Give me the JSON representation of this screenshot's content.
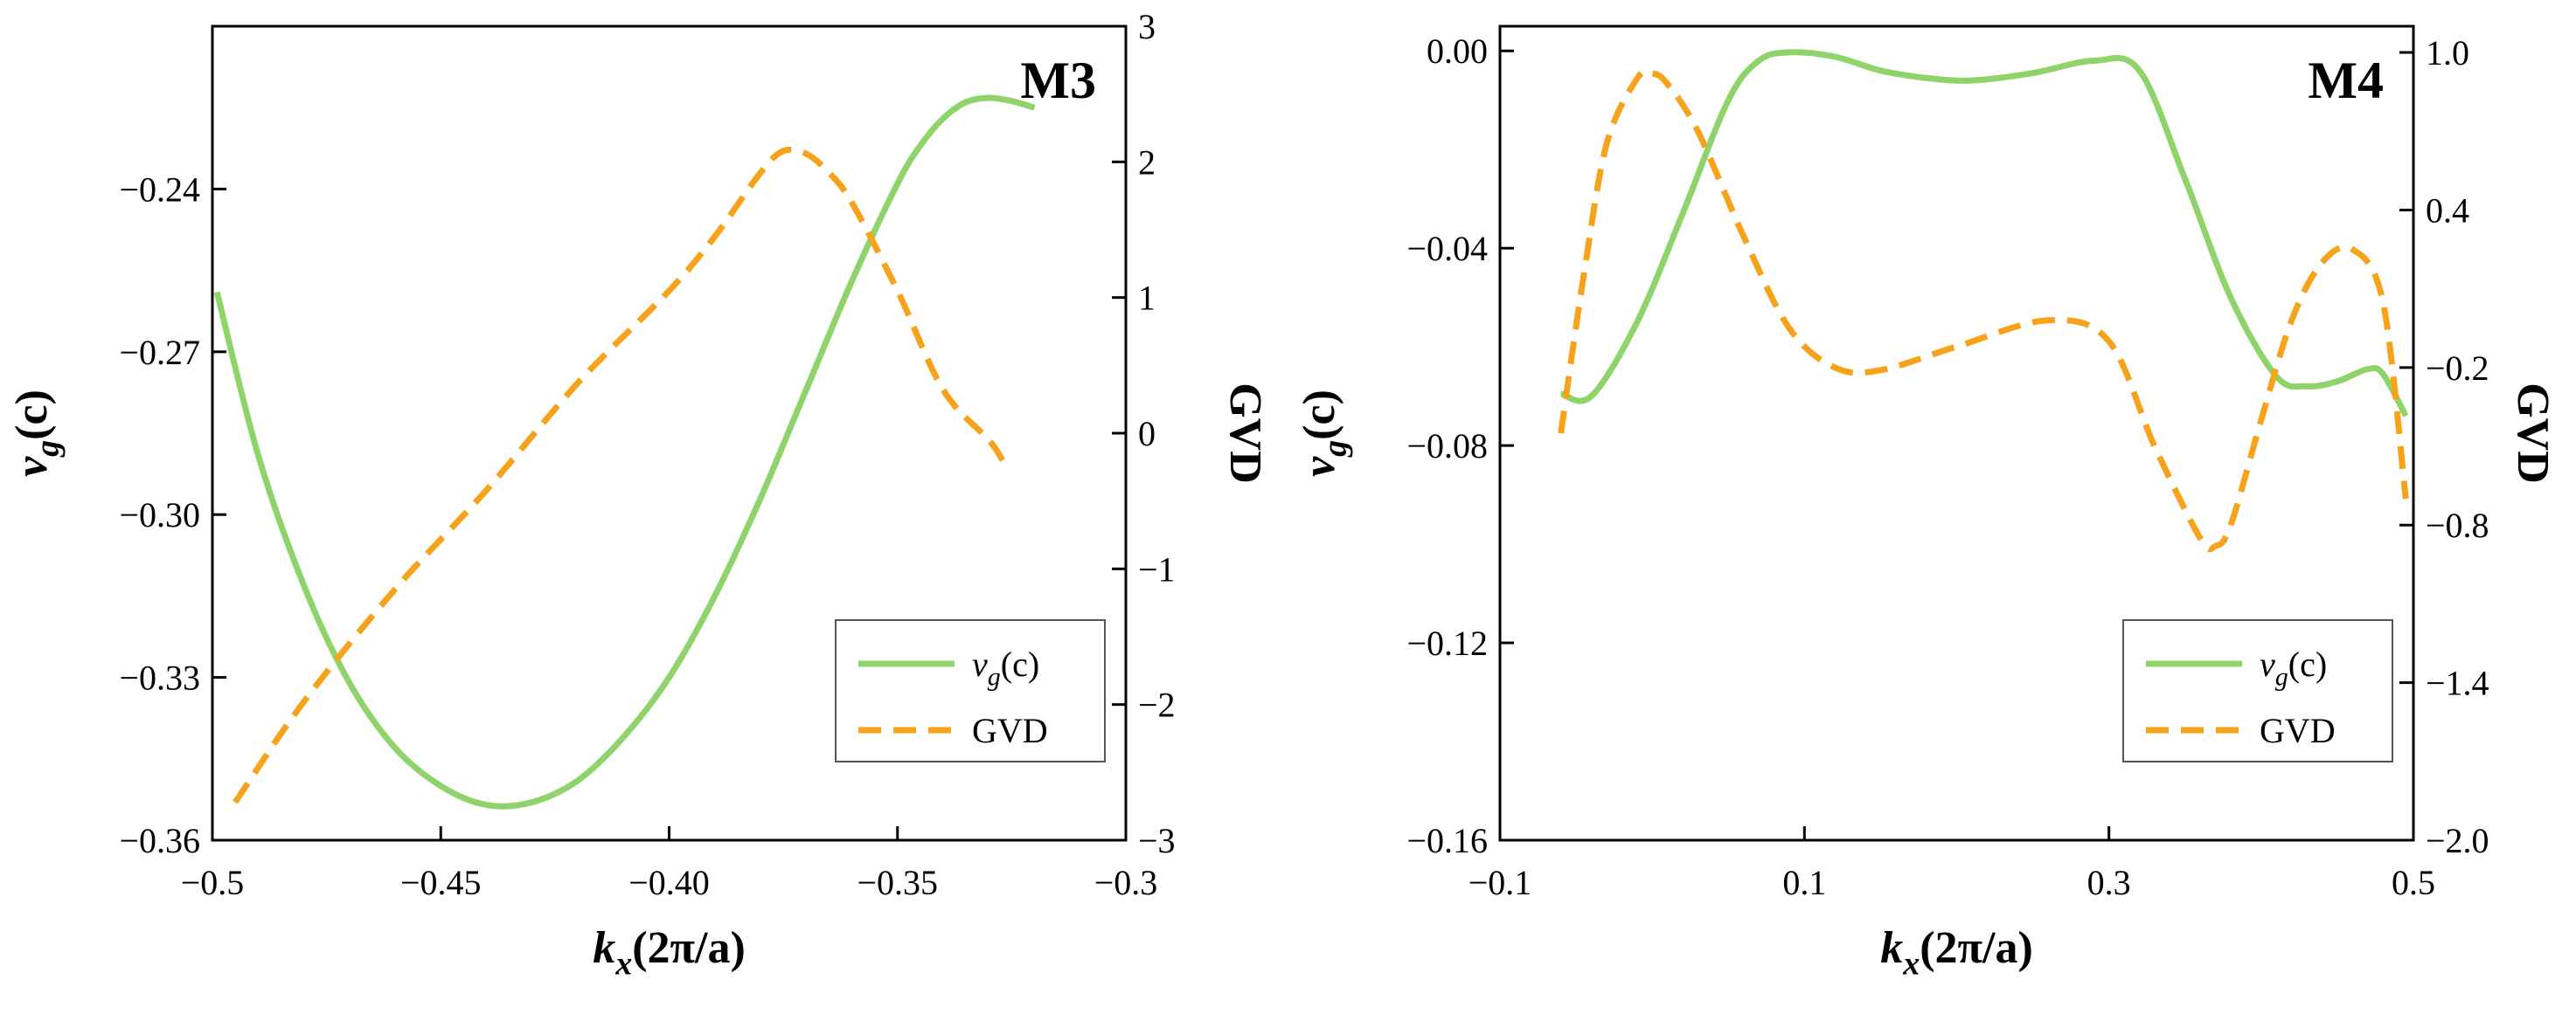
{
  "chart_data": [
    {
      "type": "line",
      "title": "M3",
      "xlabel": "k_x(2π/a)",
      "ylabel": "v_g(c)",
      "ylabel2": "GVD",
      "xlim": [
        -0.5,
        -0.3
      ],
      "ylim": [
        -0.36,
        -0.21
      ],
      "ylim2": [
        -3,
        3
      ],
      "xticks": [
        "−0.5",
        "−0.45",
        "−0.40",
        "−0.35",
        "−0.3"
      ],
      "yticks": [
        "−0.36",
        "−0.33",
        "−0.30",
        "−0.27",
        "−0.24"
      ],
      "yticks2": [
        "−3",
        "−2",
        "−1",
        "0",
        "1",
        "2",
        "3"
      ],
      "legend_position": "bottom-right",
      "series": [
        {
          "name": "v_g(c)",
          "axis": "left",
          "color": "#8fd46a",
          "style": "solid",
          "x": [
            -0.499,
            -0.49,
            -0.48,
            -0.47,
            -0.46,
            -0.45,
            -0.44,
            -0.43,
            -0.42,
            -0.41,
            -0.4,
            -0.39,
            -0.38,
            -0.37,
            -0.36,
            -0.35,
            -0.345,
            -0.34,
            -0.335,
            -0.33,
            -0.325,
            -0.32
          ],
          "y": [
            -0.259,
            -0.289,
            -0.313,
            -0.331,
            -0.343,
            -0.35,
            -0.3535,
            -0.353,
            -0.349,
            -0.341,
            -0.33,
            -0.315,
            -0.297,
            -0.277,
            -0.257,
            -0.239,
            -0.232,
            -0.227,
            -0.224,
            -0.2232,
            -0.2238,
            -0.225
          ]
        },
        {
          "name": "GVD",
          "axis": "right",
          "color": "#f7a21b",
          "style": "dashed",
          "x": [
            -0.495,
            -0.48,
            -0.46,
            -0.44,
            -0.42,
            -0.4,
            -0.39,
            -0.38,
            -0.375,
            -0.37,
            -0.365,
            -0.36,
            -0.35,
            -0.34,
            -0.33,
            -0.327
          ],
          "y": [
            -2.72,
            -1.98,
            -1.15,
            -0.42,
            0.37,
            1.05,
            1.45,
            1.92,
            2.08,
            2.06,
            1.92,
            1.7,
            1.05,
            0.32,
            -0.05,
            -0.2
          ]
        }
      ],
      "legend": [
        "v_g(c)",
        "GVD"
      ]
    },
    {
      "type": "line",
      "title": "M4",
      "xlabel": "k_x(2π/a)",
      "ylabel": "v_g(c)",
      "ylabel2": "GVD",
      "xlim": [
        -0.1,
        0.5
      ],
      "ylim": [
        -0.16,
        0.005
      ],
      "ylim2": [
        -2.0,
        1.1
      ],
      "xticks": [
        "−0.1",
        "0.1",
        "0.3",
        "0.5"
      ],
      "yticks": [
        "−0.16",
        "−0.12",
        "−0.08",
        "−0.04",
        "0.00"
      ],
      "yticks2": [
        "−2.0",
        "−1.4",
        "−0.8",
        "−0.2",
        "0.4",
        "1.0"
      ],
      "legend_position": "bottom-right",
      "series": [
        {
          "name": "v_g(c)",
          "axis": "left",
          "color": "#8fd46a",
          "style": "solid",
          "x": [
            -0.06,
            -0.04,
            -0.01,
            0.02,
            0.05,
            0.07,
            0.09,
            0.12,
            0.15,
            0.18,
            0.21,
            0.25,
            0.29,
            0.32,
            0.35,
            0.38,
            0.41,
            0.43,
            0.45,
            0.47,
            0.48,
            0.495
          ],
          "y": [
            -0.0695,
            -0.07,
            -0.055,
            -0.033,
            -0.01,
            -0.002,
            -0.0003,
            -0.0012,
            -0.004,
            -0.0055,
            -0.006,
            -0.0045,
            -0.002,
            -0.004,
            -0.026,
            -0.05,
            -0.066,
            -0.068,
            -0.067,
            -0.0645,
            -0.0655,
            -0.074
          ]
        },
        {
          "name": "GVD",
          "axis": "right",
          "color": "#f7a21b",
          "style": "dashed",
          "x": [
            -0.06,
            -0.045,
            -0.03,
            -0.01,
            0.0,
            0.01,
            0.03,
            0.06,
            0.09,
            0.12,
            0.15,
            0.2,
            0.26,
            0.3,
            0.33,
            0.36,
            0.37,
            0.38,
            0.4,
            0.42,
            0.44,
            0.46,
            0.48,
            0.495
          ],
          "y": [
            -0.45,
            0.15,
            0.65,
            0.9,
            0.92,
            0.88,
            0.7,
            0.3,
            -0.05,
            -0.2,
            -0.21,
            -0.12,
            -0.02,
            -0.1,
            -0.5,
            -0.85,
            -0.88,
            -0.8,
            -0.4,
            -0.02,
            0.2,
            0.25,
            0.05,
            -0.7
          ]
        }
      ],
      "legend": [
        "v_g(c)",
        "GVD"
      ]
    }
  ]
}
